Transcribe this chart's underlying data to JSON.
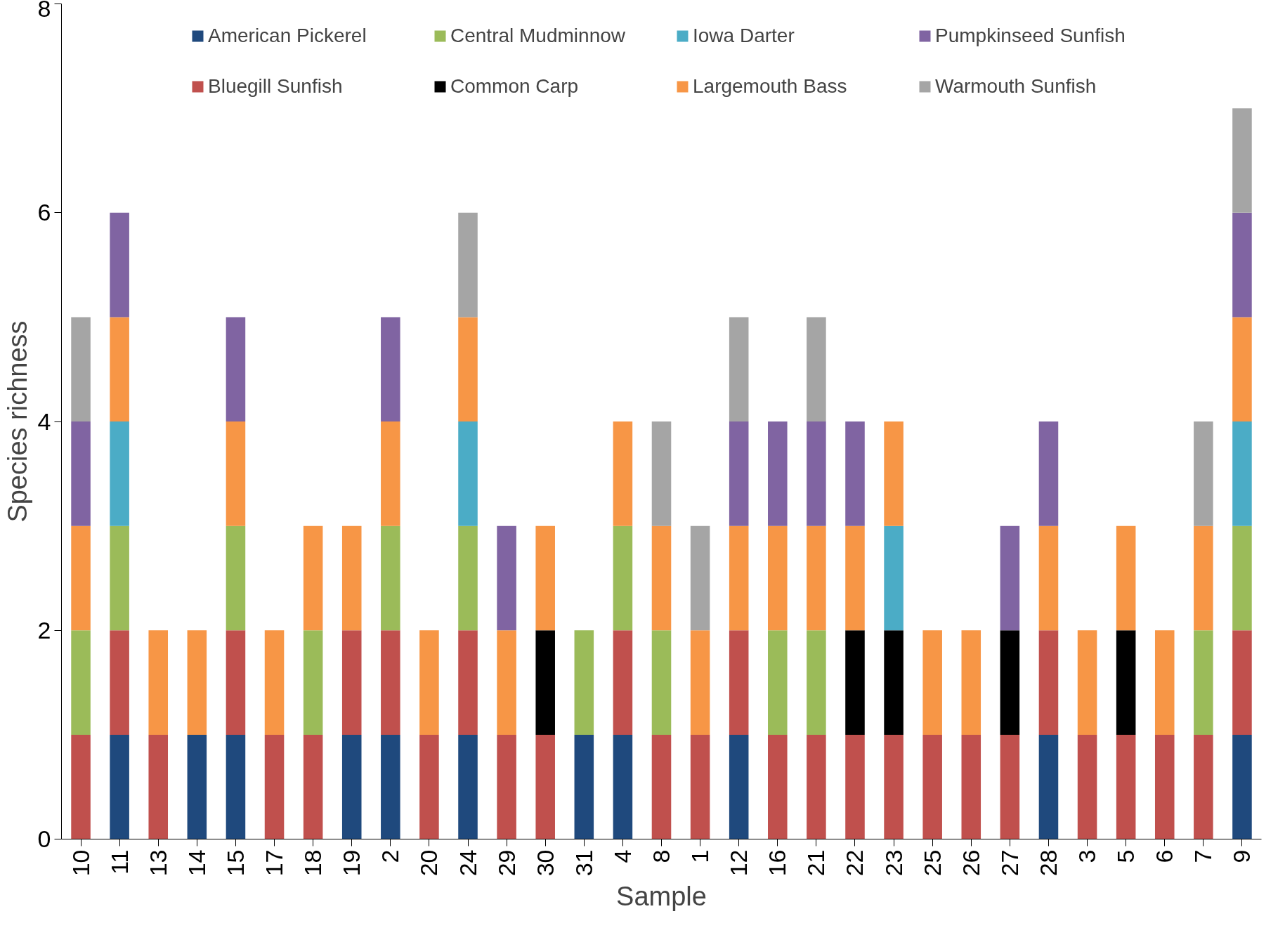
{
  "chart_data": {
    "type": "bar",
    "stacked": true,
    "xlabel": "Sample",
    "ylabel": "Species richness",
    "categories": [
      "10",
      "11",
      "13",
      "14",
      "15",
      "17",
      "18",
      "19",
      "2",
      "20",
      "24",
      "29",
      "30",
      "31",
      "4",
      "8",
      "1",
      "12",
      "16",
      "21",
      "22",
      "23",
      "25",
      "26",
      "27",
      "28",
      "3",
      "5",
      "6",
      "7",
      "9"
    ],
    "series": [
      {
        "name": "American Pickerel",
        "color": "#1f497d",
        "values": [
          0,
          1,
          0,
          1,
          1,
          0,
          0,
          1,
          1,
          0,
          1,
          0,
          0,
          1,
          1,
          0,
          0,
          1,
          0,
          0,
          0,
          0,
          0,
          0,
          0,
          1,
          0,
          0,
          0,
          0,
          1
        ]
      },
      {
        "name": "Bluegill Sunfish",
        "color": "#c0504d",
        "values": [
          1,
          1,
          1,
          0,
          1,
          1,
          1,
          1,
          1,
          1,
          1,
          1,
          1,
          0,
          1,
          1,
          1,
          1,
          1,
          1,
          1,
          1,
          1,
          1,
          1,
          1,
          1,
          1,
          1,
          1,
          1
        ]
      },
      {
        "name": "Central Mudminnow",
        "color": "#9bbb59",
        "values": [
          1,
          1,
          0,
          0,
          1,
          0,
          1,
          0,
          1,
          0,
          1,
          0,
          0,
          1,
          1,
          1,
          0,
          0,
          1,
          1,
          0,
          0,
          0,
          0,
          0,
          0,
          0,
          0,
          0,
          1,
          1
        ]
      },
      {
        "name": "Common Carp",
        "color": "#000000",
        "values": [
          0,
          0,
          0,
          0,
          0,
          0,
          0,
          0,
          0,
          0,
          0,
          0,
          1,
          0,
          0,
          0,
          0,
          0,
          0,
          0,
          1,
          1,
          0,
          0,
          1,
          0,
          0,
          1,
          0,
          0,
          0
        ]
      },
      {
        "name": "Iowa Darter",
        "color": "#4bacc6",
        "values": [
          0,
          1,
          0,
          0,
          0,
          0,
          0,
          0,
          0,
          0,
          1,
          0,
          0,
          0,
          0,
          0,
          0,
          0,
          0,
          0,
          0,
          1,
          0,
          0,
          0,
          0,
          0,
          0,
          0,
          0,
          1
        ]
      },
      {
        "name": "Largemouth Bass",
        "color": "#f79646",
        "values": [
          1,
          1,
          1,
          1,
          1,
          1,
          1,
          1,
          1,
          1,
          1,
          1,
          1,
          0,
          1,
          1,
          1,
          1,
          1,
          1,
          1,
          1,
          1,
          1,
          0,
          1,
          1,
          1,
          1,
          1,
          1
        ]
      },
      {
        "name": "Pumpkinseed Sunfish",
        "color": "#8064a2",
        "values": [
          1,
          1,
          0,
          0,
          1,
          0,
          0,
          0,
          1,
          0,
          0,
          1,
          0,
          0,
          0,
          0,
          0,
          1,
          1,
          1,
          1,
          0,
          0,
          0,
          1,
          1,
          0,
          0,
          0,
          0,
          1
        ]
      },
      {
        "name": "Warmouth Sunfish",
        "color": "#a5a5a5",
        "values": [
          1,
          0,
          0,
          0,
          0,
          0,
          0,
          0,
          0,
          0,
          1,
          0,
          0,
          0,
          0,
          1,
          1,
          1,
          0,
          1,
          0,
          0,
          0,
          0,
          0,
          0,
          0,
          0,
          0,
          1,
          1
        ]
      }
    ],
    "ylim": [
      0,
      8
    ],
    "yticks": [
      0,
      2,
      4,
      6,
      8
    ],
    "grid": false,
    "legend": "top"
  }
}
